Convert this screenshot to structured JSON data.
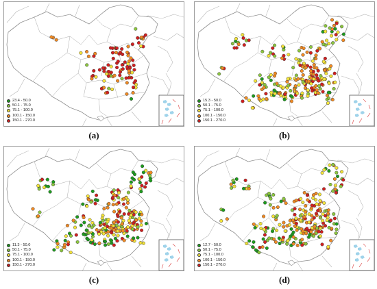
{
  "colors": {
    "class_1": "#1e9c1e",
    "class_2": "#8cc63f",
    "class_3": "#f3e33a",
    "class_4": "#f08a24",
    "class_5": "#d21f1f",
    "boundary": "#8f8f8f",
    "inset_islands": "#9fd3ea",
    "inset_dashes": "#e26a6a"
  },
  "panels": [
    {
      "caption": "(a)",
      "legend": [
        "23.4 - 50.0",
        "50.1 - 75.0",
        "75.1 - 100.0",
        "100.1 - 150.0",
        "150.1 - 270.0"
      ],
      "mix": [
        0.04,
        0.12,
        0.22,
        0.27,
        0.35
      ],
      "coverage": "sparse"
    },
    {
      "caption": "(b)",
      "legend": [
        "15.3 - 50.0",
        "50.1 - 75.0",
        "75.1 - 100.0",
        "100.1 - 150.0",
        "150.1 - 270.0"
      ],
      "mix": [
        0.22,
        0.2,
        0.25,
        0.2,
        0.13
      ],
      "coverage": "dense"
    },
    {
      "caption": "(c)",
      "legend": [
        "11.3 - 50.0",
        "50.1 - 75.0",
        "75.1 - 100.0",
        "100.1 - 150.0",
        "150.1 - 270.0"
      ],
      "mix": [
        0.45,
        0.2,
        0.17,
        0.12,
        0.06
      ],
      "coverage": "dense"
    },
    {
      "caption": "(d)",
      "legend": [
        "12.7 - 50.0",
        "50.1 - 75.0",
        "75.1 - 100.0",
        "100.1 - 150.0",
        "150.1 - 270.0"
      ],
      "mix": [
        0.28,
        0.22,
        0.23,
        0.17,
        0.1
      ],
      "coverage": "dense"
    }
  ]
}
